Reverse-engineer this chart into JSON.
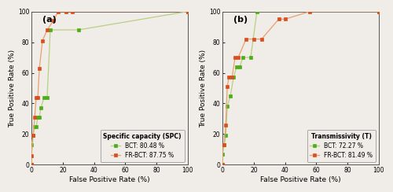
{
  "spc": {
    "title": "Specific capacity (SPC)",
    "bct_label": "BCT: 80.48 %",
    "frbct_label": "FR-BCT: 87.75 %",
    "bct_fpr": [
      0,
      0,
      1,
      2,
      3,
      4,
      5,
      6,
      8,
      10,
      12,
      30,
      100
    ],
    "bct_tpr": [
      0,
      13,
      19,
      25,
      25,
      31,
      31,
      37,
      44,
      44,
      88,
      88,
      100
    ],
    "frbct_fpr": [
      0,
      0,
      1,
      2,
      3,
      4,
      5,
      7,
      10,
      14,
      17,
      22,
      26,
      100
    ],
    "frbct_tpr": [
      0,
      6,
      19,
      31,
      44,
      44,
      63,
      81,
      88,
      94,
      100,
      100,
      100,
      100
    ]
  },
  "t": {
    "title": "Transmissivity (T)",
    "bct_label": "BCT: 72.27 %",
    "frbct_label": "FR-BCT: 81.49 %",
    "bct_fpr": [
      0,
      0,
      1,
      2,
      3,
      5,
      7,
      9,
      11,
      13,
      18,
      22,
      100
    ],
    "bct_tpr": [
      0,
      7,
      13,
      19,
      38,
      45,
      57,
      64,
      64,
      70,
      70,
      100,
      100
    ],
    "frbct_fpr": [
      0,
      0,
      1,
      2,
      3,
      4,
      6,
      8,
      10,
      15,
      20,
      25,
      36,
      40,
      56,
      100
    ],
    "frbct_tpr": [
      0,
      13,
      13,
      26,
      51,
      57,
      57,
      70,
      70,
      82,
      82,
      82,
      95,
      95,
      100,
      100
    ]
  },
  "bct_color": "#4caf1a",
  "frbct_color": "#d94f1e",
  "bct_line_color": "#b8d080",
  "frbct_line_color": "#e8a070",
  "xlabel": "False Positive Rate (%)",
  "ylabel": "True Positive Rate (%)",
  "xlim": [
    0,
    100
  ],
  "ylim": [
    0,
    100
  ],
  "xticks": [
    0,
    20,
    40,
    60,
    80,
    100
  ],
  "yticks": [
    0,
    20,
    40,
    60,
    80,
    100
  ],
  "marker": "s",
  "markersize": 2.5,
  "linewidth": 0.9,
  "legend_fontsize": 5.5,
  "legend_title_fontsize": 5.5,
  "axis_label_fontsize": 6.5,
  "tick_fontsize": 5.5,
  "panel_fontsize": 8,
  "bg_color": "#f0ece8"
}
